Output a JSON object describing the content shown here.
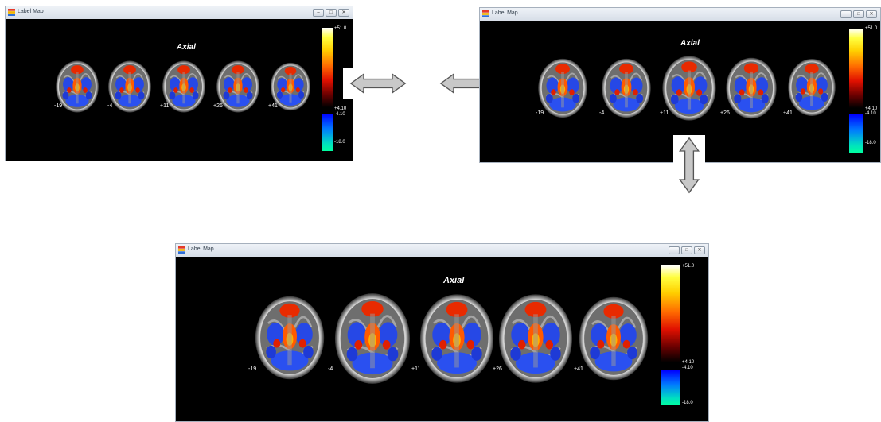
{
  "window": {
    "title": "Label Map",
    "buttons": {
      "minimize": "–",
      "restore": "□",
      "close": "✕"
    }
  },
  "view": {
    "heading": "Axial",
    "slices": [
      {
        "label": "-19"
      },
      {
        "label": "-4"
      },
      {
        "label": "+11"
      },
      {
        "label": "+26"
      },
      {
        "label": "+41"
      }
    ],
    "colorbar": {
      "pos_max": "+51.0",
      "pos_min": "+4.10",
      "neg_max": "-4.10",
      "neg_min": "-18.0"
    }
  },
  "colors": {
    "background": "#000000",
    "positive_activation": "#e83000",
    "negative_activation": "#1e4cf0",
    "arrow_fill": "#c8c8c8"
  },
  "icons": [
    "label-map-app-icon",
    "horizontal-double-arrow-icon",
    "vertical-double-arrow-icon"
  ]
}
